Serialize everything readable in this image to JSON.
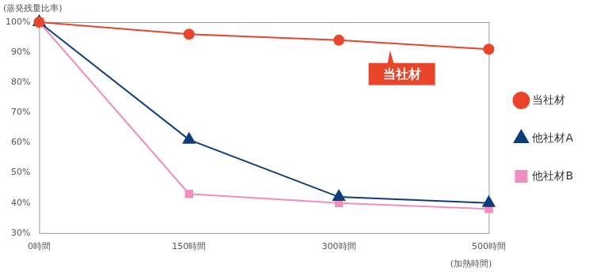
{
  "chart_data": {
    "type": "line",
    "y_label": "(蒸発残量比率)",
    "x_label": "(加熱時間)",
    "categories": [
      "0時間",
      "150時間",
      "300時間",
      "500時間"
    ],
    "series": [
      {
        "name": "当社材",
        "color": "#e8452a",
        "marker": "circle",
        "values": [
          100,
          96,
          94,
          91
        ]
      },
      {
        "name": "他社材A",
        "color": "#0e3d7e",
        "marker": "triangle",
        "values": [
          100,
          61,
          42,
          40
        ]
      },
      {
        "name": "他社材B",
        "color": "#ee8fbd",
        "marker": "square",
        "values": [
          100,
          43,
          40,
          38
        ]
      }
    ],
    "ylim": [
      30,
      100
    ],
    "yticks": [
      {
        "value": 30,
        "label": "30%"
      },
      {
        "value": 40,
        "label": "40%"
      },
      {
        "value": 50,
        "label": "50%"
      },
      {
        "value": 60,
        "label": "60%"
      },
      {
        "value": 70,
        "label": "70%"
      },
      {
        "value": 80,
        "label": "80%"
      },
      {
        "value": 90,
        "label": "90%"
      },
      {
        "value": 100,
        "label": "100%"
      }
    ],
    "grid": false,
    "legend": "right",
    "annotations": [
      {
        "text": "当社材",
        "series": "当社材"
      }
    ]
  }
}
